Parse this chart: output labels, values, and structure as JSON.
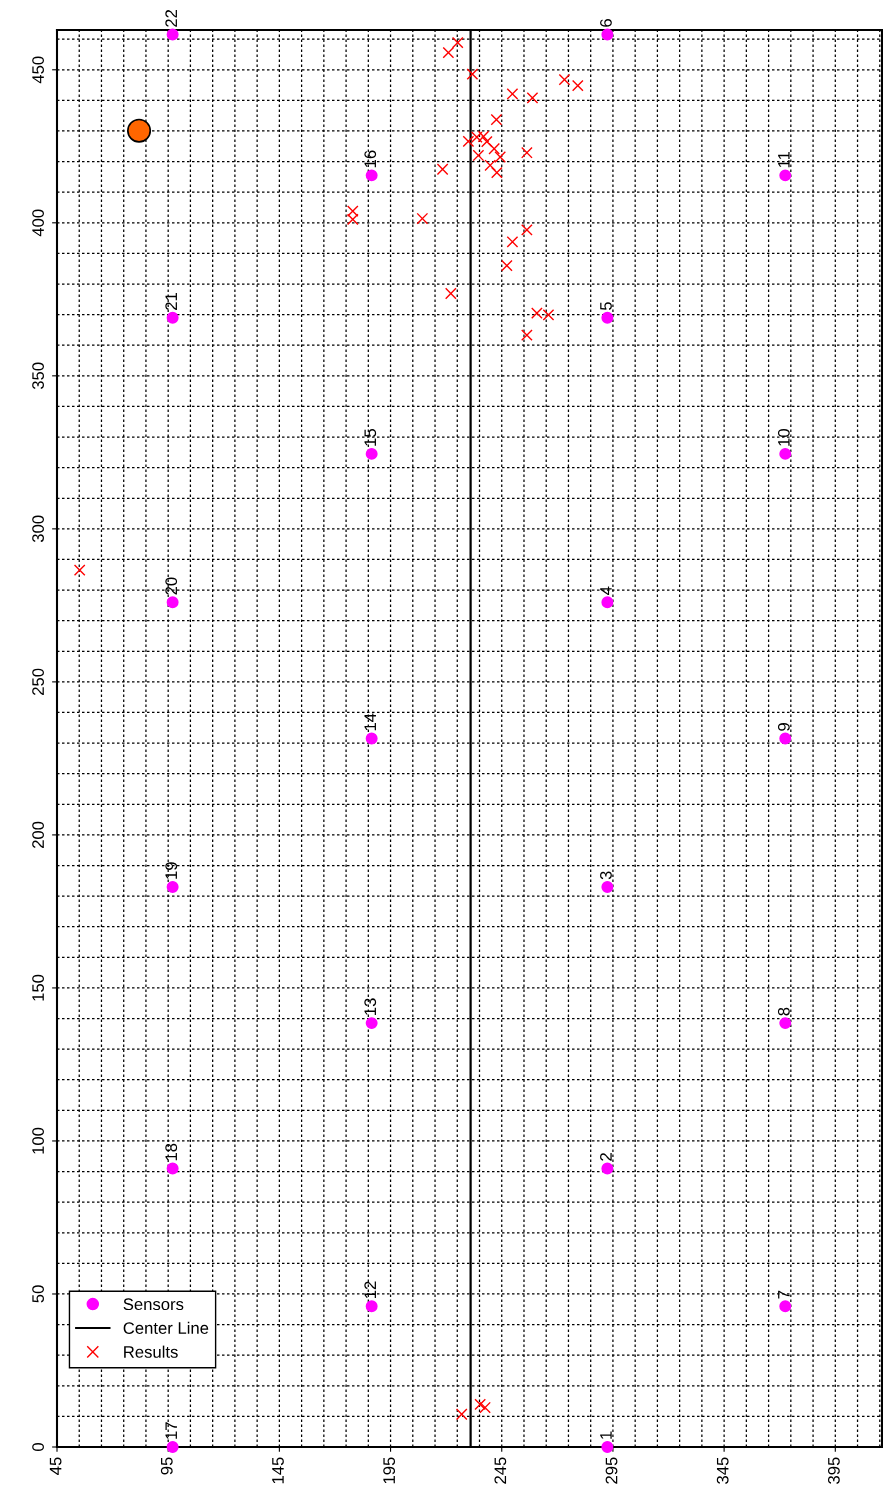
{
  "chart_data": {
    "type": "scatter",
    "xlim": [
      45,
      416
    ],
    "xticks": [
      45,
      95,
      145,
      195,
      245,
      295,
      345,
      395
    ],
    "ylim": [
      0,
      463
    ],
    "yticks": [
      0,
      50,
      100,
      150,
      200,
      250,
      300,
      350,
      400,
      450
    ],
    "grid": true,
    "legend": "bottom left",
    "series": [
      {
        "name": "Sensors",
        "marker": "circle",
        "color": "#ff00ff",
        "x": [
          292.5,
          292.5,
          292.5,
          292.5,
          292.5,
          292.5,
          372.5,
          372.5,
          372.5,
          372.5,
          372.5,
          186.5,
          186.5,
          186.5,
          186.5,
          186.5,
          97,
          97,
          97,
          97,
          97,
          97
        ],
        "values": [
          0,
          91,
          183,
          276,
          369,
          461.5,
          46,
          138.5,
          231.5,
          324.5,
          415.5,
          46,
          138.5,
          231.5,
          324.5,
          415.5,
          0,
          91,
          183,
          276,
          369,
          461.5
        ]
      },
      {
        "name": "Center Line",
        "type": "line",
        "marker": "none",
        "line_style": "solid",
        "color": "#000000",
        "x": [
          231,
          231
        ],
        "values": [
          0,
          463
        ]
      },
      {
        "name": "Results",
        "marker": "cross",
        "color": "#ff0000",
        "x": [
          221.0,
          225.2,
          231.8,
          273.2,
          279.2,
          249.8,
          258.8,
          242.6,
          230.0,
          233.8,
          236.8,
          238.3,
          241.6,
          234.5,
          244.3,
          256.3,
          239.8,
          242.8,
          218.4,
          178.0,
          178.0,
          209.3,
          256.3,
          249.8,
          247.3,
          222.1,
          260.8,
          266.0,
          256.3,
          55.2,
          227.0,
          235.3,
          237.5
        ],
        "values": [
          455.6,
          458.9,
          448.6,
          446.8,
          444.8,
          442.1,
          440.8,
          433.7,
          426.6,
          428.0,
          428.2,
          426.5,
          424.2,
          422.0,
          421.5,
          422.9,
          418.8,
          416.4,
          417.5,
          403.8,
          401.1,
          401.4,
          397.7,
          393.8,
          386.0,
          376.9,
          370.5,
          369.9,
          363.3,
          286.5,
          10.7,
          13.9,
          12.9
        ]
      },
      {
        "marker": "circle",
        "color": "#ff6600",
        "x": [
          81.9
        ],
        "values": [
          430.1
        ]
      }
    ],
    "annotations": [
      {
        "text": "1",
        "x": 292.5,
        "y": 0
      },
      {
        "text": "2",
        "x": 292.5,
        "y": 91
      },
      {
        "text": "3",
        "x": 292.5,
        "y": 183
      },
      {
        "text": "4",
        "x": 292.5,
        "y": 276
      },
      {
        "text": "5",
        "x": 292.5,
        "y": 369
      },
      {
        "text": "6",
        "x": 292.5,
        "y": 461.5
      },
      {
        "text": "7",
        "x": 372.5,
        "y": 46
      },
      {
        "text": "8",
        "x": 372.5,
        "y": 138.5
      },
      {
        "text": "9",
        "x": 372.5,
        "y": 231.5
      },
      {
        "text": "10",
        "x": 372.5,
        "y": 324.5
      },
      {
        "text": "11",
        "x": 372.5,
        "y": 415.5
      },
      {
        "text": "12",
        "x": 186.5,
        "y": 46
      },
      {
        "text": "13",
        "x": 186.5,
        "y": 138.5
      },
      {
        "text": "14",
        "x": 186.5,
        "y": 231.5
      },
      {
        "text": "15",
        "x": 186.5,
        "y": 324.5
      },
      {
        "text": "16",
        "x": 186.5,
        "y": 415.5
      },
      {
        "text": "17",
        "x": 97,
        "y": 0
      },
      {
        "text": "18",
        "x": 97,
        "y": 91
      },
      {
        "text": "19",
        "x": 97,
        "y": 183
      },
      {
        "text": "20",
        "x": 97,
        "y": 276
      },
      {
        "text": "21",
        "x": 97,
        "y": 369
      },
      {
        "text": "22",
        "x": 97,
        "y": 461.5
      }
    ]
  }
}
